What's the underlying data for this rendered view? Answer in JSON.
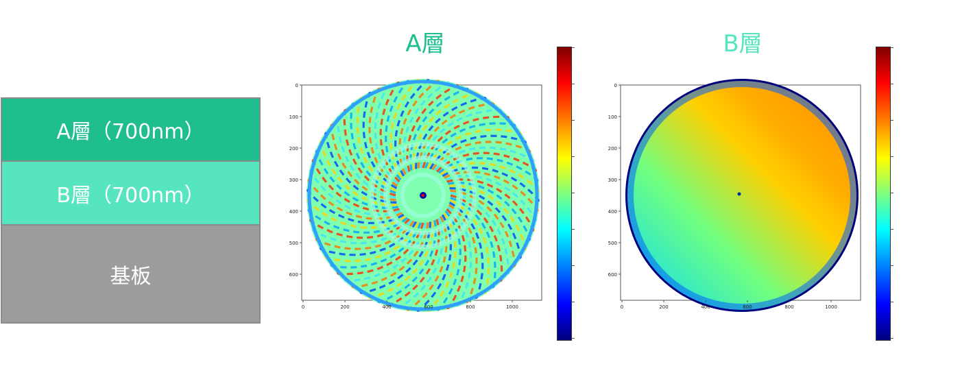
{
  "layers": [
    {
      "label": "A層（700nm）",
      "color": "#1fbe8f"
    },
    {
      "label": "B層（700nm）",
      "color": "#57e5bf"
    },
    {
      "label": "基板",
      "color": "#9c9c9c"
    }
  ],
  "maps": [
    {
      "title": "A層",
      "title_color": "#1fbe8f",
      "x_ticks": [
        "0",
        "200",
        "400",
        "600",
        "800",
        "1000"
      ],
      "y_ticks": [
        "0",
        "100",
        "200",
        "300",
        "400",
        "500",
        "600"
      ],
      "pattern": "spiral-ripple"
    },
    {
      "title": "B層",
      "title_color": "#57e5bf",
      "x_ticks": [
        "0",
        "200",
        "400",
        "600",
        "800",
        "1000"
      ],
      "y_ticks": [
        "0",
        "100",
        "200",
        "300",
        "400",
        "500",
        "600"
      ],
      "pattern": "diagonal-gradient"
    }
  ],
  "colormap": "jet"
}
